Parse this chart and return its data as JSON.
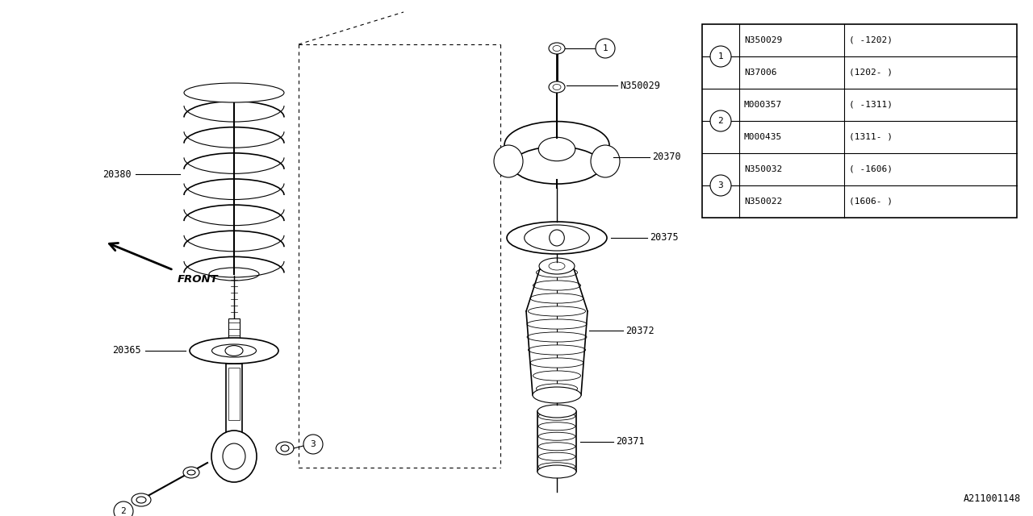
{
  "bg_color": "#ffffff",
  "line_color": "#000000",
  "watermark": "A211001148",
  "table": {
    "rows": [
      {
        "num": "1",
        "parts": [
          [
            "N350029",
            "( -1202)"
          ],
          [
            "N37006",
            "(1202- )"
          ]
        ]
      },
      {
        "num": "2",
        "parts": [
          [
            "M000357",
            "( -1311)"
          ],
          [
            "M000435",
            "(1311- )"
          ]
        ]
      },
      {
        "num": "3",
        "parts": [
          [
            "N350032",
            "( -1606)"
          ],
          [
            "N350022",
            "(1606- )"
          ]
        ]
      }
    ]
  },
  "fig_w": 12.8,
  "fig_h": 6.4,
  "dpi": 100
}
